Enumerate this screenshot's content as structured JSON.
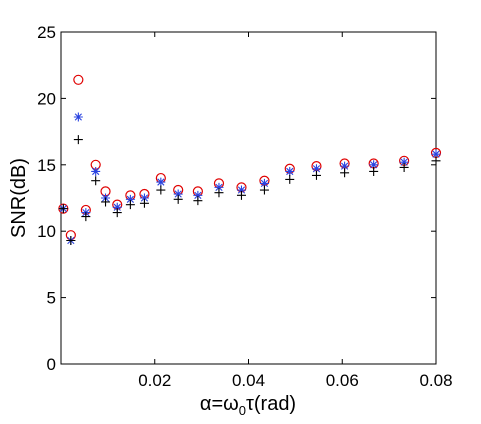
{
  "chart_data": {
    "type": "scatter",
    "xlabel": "α=ω0τ(rad)",
    "xlabel_parts": {
      "prefix": "α=ω",
      "subscript": "0",
      "suffix": "τ(rad)"
    },
    "ylabel": "SNR(dB)",
    "xlim": [
      0,
      0.08
    ],
    "ylim": [
      0,
      25
    ],
    "xticks": [
      0.02,
      0.04,
      0.06,
      0.08
    ],
    "xtick_labels": [
      "0.02",
      "0.04",
      "0.06",
      "0.08"
    ],
    "yticks": [
      0,
      5,
      10,
      15,
      20,
      25
    ],
    "ytick_labels": [
      "0",
      "5",
      "10",
      "15",
      "20",
      "25"
    ],
    "grid": false,
    "legend": "none",
    "x": [
      0.0005,
      0.0021,
      0.0037,
      0.0053,
      0.0074,
      0.0095,
      0.012,
      0.0148,
      0.0178,
      0.0213,
      0.025,
      0.0292,
      0.0337,
      0.0385,
      0.0434,
      0.0488,
      0.0545,
      0.0605,
      0.0667,
      0.0732,
      0.08
    ],
    "series": [
      {
        "marker": "circle",
        "color": "#e00000",
        "values": [
          11.7,
          9.7,
          21.4,
          11.6,
          15.0,
          13.0,
          12.0,
          12.7,
          12.8,
          14.0,
          13.1,
          13.0,
          13.6,
          13.3,
          13.8,
          14.7,
          14.9,
          15.1,
          15.1,
          15.3,
          15.9
        ]
      },
      {
        "marker": "asterisk",
        "color": "#2a43e0",
        "values": [
          11.7,
          9.3,
          18.6,
          11.4,
          14.5,
          12.5,
          11.8,
          12.4,
          12.5,
          13.7,
          12.8,
          12.7,
          13.3,
          13.1,
          13.6,
          14.5,
          14.7,
          14.9,
          15.0,
          15.2,
          15.8
        ]
      },
      {
        "marker": "plus",
        "color": "#000000",
        "values": [
          11.7,
          9.3,
          16.9,
          11.1,
          13.8,
          12.2,
          11.4,
          12.0,
          12.1,
          13.1,
          12.4,
          12.3,
          12.9,
          12.7,
          13.1,
          13.9,
          14.2,
          14.4,
          14.5,
          14.8,
          15.3
        ]
      }
    ]
  }
}
